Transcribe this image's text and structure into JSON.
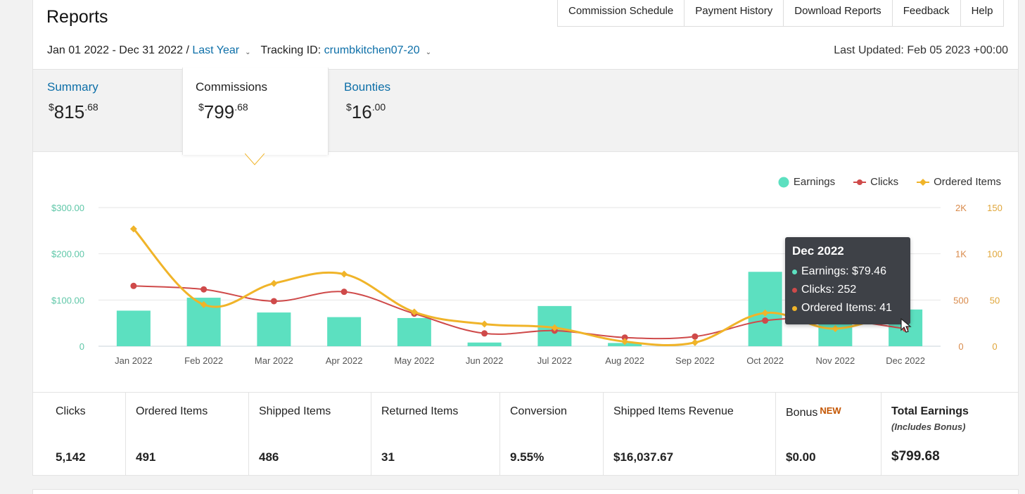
{
  "header": {
    "title": "Reports",
    "nav": [
      "Commission Schedule",
      "Payment History",
      "Download Reports",
      "Feedback",
      "Help"
    ],
    "date_range": "Jan 01 2022 - Dec 31 2022 /",
    "date_preset": "Last Year",
    "tracking_label": "Tracking ID:",
    "tracking_id": "crumbkitchen07-20",
    "last_updated": "Last Updated: Feb 05 2023 +00:00"
  },
  "tabs": [
    {
      "label": "Summary",
      "currency": "$",
      "whole": "815",
      "cents": ".68",
      "active": false
    },
    {
      "label": "Commissions",
      "currency": "$",
      "whole": "799",
      "cents": ".68",
      "active": true
    },
    {
      "label": "Bounties",
      "currency": "$",
      "whole": "16",
      "cents": ".00",
      "active": false
    }
  ],
  "legend": [
    "Earnings",
    "Clicks",
    "Ordered Items"
  ],
  "colors": {
    "earnings": "#5ce0c0",
    "clicks": "#cf4a4a",
    "ordered": "#f0b429",
    "link": "#0d6fa8",
    "tooltip_bg": "#3e4147"
  },
  "chart_data": {
    "type": "bar",
    "categories": [
      "Jan 2022",
      "Feb 2022",
      "Mar 2022",
      "Apr 2022",
      "May 2022",
      "Jun 2022",
      "Jul 2022",
      "Aug 2022",
      "Sep 2022",
      "Oct 2022",
      "Nov 2022",
      "Dec 2022"
    ],
    "series": [
      {
        "name": "Earnings",
        "type": "bar",
        "axis": "left",
        "values": [
          77,
          105,
          73,
          63,
          61,
          8,
          87,
          7,
          0,
          161,
          70,
          79.46
        ]
      },
      {
        "name": "Clicks",
        "type": "line",
        "axis": "right1",
        "values": [
          870,
          820,
          650,
          785,
          470,
          185,
          225,
          125,
          140,
          370,
          385,
          252
        ]
      },
      {
        "name": "Ordered Items",
        "type": "line",
        "axis": "right2",
        "values": [
          127,
          45,
          68,
          78,
          37,
          24,
          20,
          5,
          4,
          36,
          19,
          41
        ]
      }
    ],
    "left_ticks": [
      "$300.00",
      "$200.00",
      "$100.00",
      "0"
    ],
    "right1_ticks": [
      "2K",
      "1K",
      "500",
      "0"
    ],
    "right2_ticks": [
      "150",
      "100",
      "50",
      "0"
    ],
    "ylim_left": [
      0,
      300
    ],
    "ylim_right1": [
      0,
      2000
    ],
    "ylim_right2": [
      0,
      150
    ],
    "grid": true,
    "legend_position": "top-right"
  },
  "tooltip": {
    "title": "Dec 2022",
    "earnings": "Earnings: $79.46",
    "clicks": "Clicks: 252",
    "ordered": "Ordered Items: 41"
  },
  "stats": [
    {
      "label": "Clicks",
      "value": "5,142"
    },
    {
      "label": "Ordered Items",
      "value": "491"
    },
    {
      "label": "Shipped Items",
      "value": "486"
    },
    {
      "label": "Returned Items",
      "value": "31"
    },
    {
      "label": "Conversion",
      "value": "9.55%"
    },
    {
      "label": "Shipped Items Revenue",
      "value": "$16,037.67"
    },
    {
      "label": "Bonus",
      "badge": "NEW",
      "value": "$0.00"
    },
    {
      "label": "Total Earnings",
      "sublabel": "(Includes Bonus)",
      "value": "$799.68"
    }
  ]
}
